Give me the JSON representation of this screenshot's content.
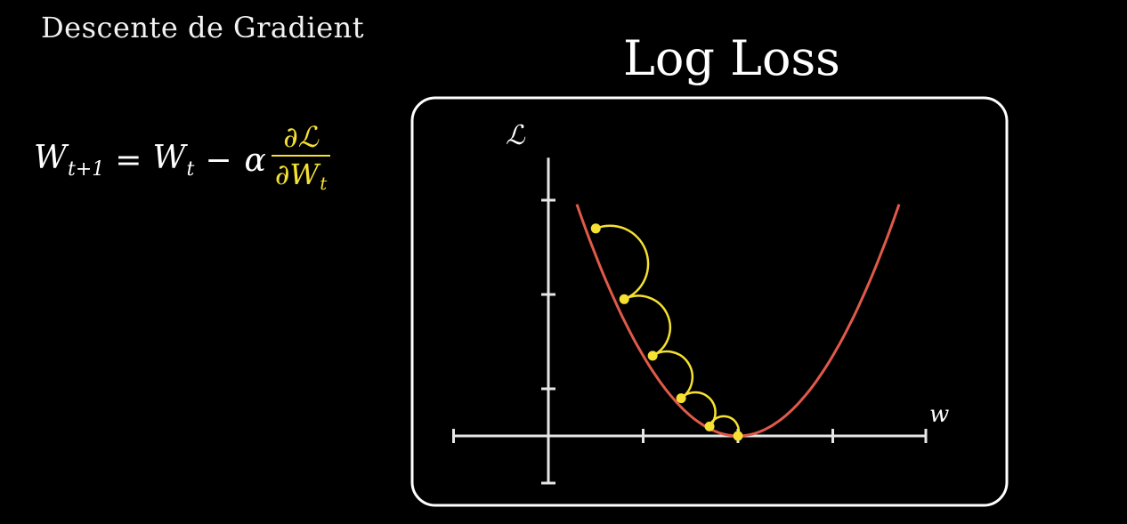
{
  "header": {
    "title": "Descente de Gradient"
  },
  "formula": {
    "lhs": "W",
    "lhs_sub": "t+1",
    "equals": "=",
    "w": "W",
    "w_sub": "t",
    "minus": "−",
    "alpha": "α",
    "numerator": "∂ℒ",
    "denominator": "∂W",
    "denominator_sub": "t"
  },
  "panel": {
    "title": "Log Loss"
  },
  "chart_data": {
    "type": "line",
    "title": "Log Loss",
    "xlabel": "w",
    "ylabel": "ℒ",
    "grid": false,
    "xlim": [
      -1,
      4
    ],
    "ylim": [
      -0.5,
      3
    ],
    "x_ticks": [
      1,
      2,
      3
    ],
    "y_ticks": [
      0.5,
      1.5,
      2.5
    ],
    "curve": {
      "name": "",
      "x_min": 0.3,
      "x_max": 3.7,
      "vertex_x": 2,
      "vertex_y": 0,
      "a": 0.85,
      "color": "#e05a4a"
    },
    "descent_points": {
      "color": "#f5e132",
      "x": [
        0.5,
        0.8,
        1.1,
        1.4,
        1.7,
        2.0
      ],
      "y": [
        2.2,
        1.45,
        0.85,
        0.4,
        0.1,
        0.0
      ]
    }
  },
  "colors": {
    "background": "#000000",
    "axis": "#e6e6e6",
    "frame": "#ffffff",
    "highlight": "#f5e132",
    "curve": "#e05a4a"
  }
}
